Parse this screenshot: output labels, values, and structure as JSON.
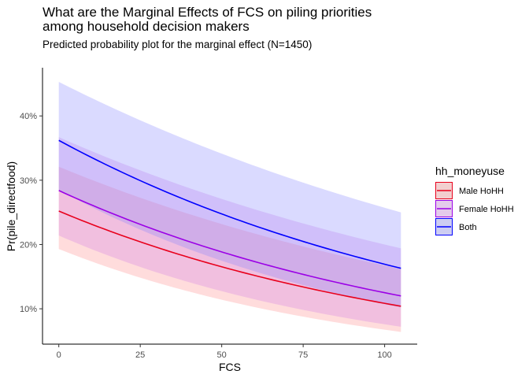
{
  "chart_data": {
    "type": "line",
    "title_lines": [
      "What are the Marginal Effects of FCS on piling priorities",
      "among household decision makers"
    ],
    "subtitle": "Predicted probability plot for the marginal effect (N=1450)",
    "xlabel": "FCS",
    "ylabel": "Pr(pile_directfood)",
    "xlim": [
      -5,
      110
    ],
    "ylim": [
      0.045,
      0.475
    ],
    "x_ticks": [
      0,
      25,
      50,
      75,
      100
    ],
    "x_tick_labels": [
      "0",
      "25",
      "50",
      "75",
      "100"
    ],
    "y_ticks": [
      0.1,
      0.2,
      0.3,
      0.4
    ],
    "y_tick_labels": [
      "10%",
      "20%",
      "30%",
      "40%"
    ],
    "grid": false,
    "legend": {
      "title": "hh_moneyuse",
      "position": "right"
    },
    "x": [
      0,
      105
    ],
    "series": [
      {
        "name": "Male HoHH",
        "color": "#e8001c",
        "fill": "#ff8a8a",
        "values": [
          0.252,
          0.104
        ],
        "lower": [
          0.193,
          0.064
        ],
        "upper": [
          0.321,
          0.162
        ]
      },
      {
        "name": "Female HoHH",
        "color": "#9b00e6",
        "fill": "#d27ee8",
        "values": [
          0.284,
          0.12
        ],
        "lower": [
          0.214,
          0.072
        ],
        "upper": [
          0.367,
          0.194
        ]
      },
      {
        "name": "Both",
        "color": "#0000ff",
        "fill": "#8585ff",
        "values": [
          0.362,
          0.163
        ],
        "lower": [
          0.285,
          0.102
        ],
        "upper": [
          0.453,
          0.25
        ]
      }
    ]
  }
}
